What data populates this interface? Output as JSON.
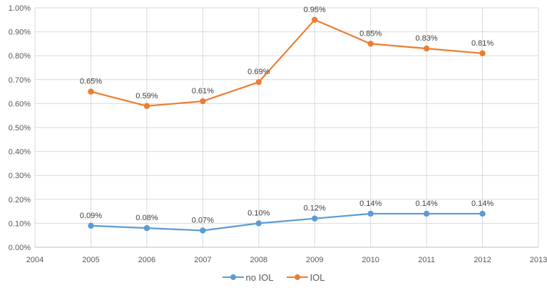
{
  "chart_data": {
    "type": "line",
    "x": [
      2005,
      2006,
      2007,
      2008,
      2009,
      2010,
      2011,
      2012
    ],
    "series": [
      {
        "name": "no IOL",
        "color": "#5B9BD5",
        "values": [
          0.09,
          0.08,
          0.07,
          0.1,
          0.12,
          0.14,
          0.14,
          0.14
        ],
        "labels": [
          "0.09%",
          "0.08%",
          "0.07%",
          "0.10%",
          "0.12%",
          "0.14%",
          "0.14%",
          "0.14%"
        ]
      },
      {
        "name": "IOL",
        "color": "#ED7D31",
        "values": [
          0.65,
          0.59,
          0.61,
          0.69,
          0.95,
          0.85,
          0.83,
          0.81
        ],
        "labels": [
          "0.65%",
          "0.59%",
          "0.61%",
          "0.69%",
          "0.95%",
          "0.85%",
          "0.83%",
          "0.81%"
        ]
      }
    ],
    "title": "",
    "xlabel": "",
    "ylabel": "",
    "xlim": [
      2004,
      2013
    ],
    "ylim": [
      0,
      1.0
    ],
    "x_tick_values": [
      2004,
      2005,
      2006,
      2007,
      2008,
      2009,
      2010,
      2011,
      2012,
      2013
    ],
    "x_tick_labels": [
      "2004",
      "2005",
      "2006",
      "2007",
      "2008",
      "2009",
      "2010",
      "2011",
      "2012",
      "2013"
    ],
    "y_tick_values": [
      0,
      0.1,
      0.2,
      0.3,
      0.4,
      0.5,
      0.6,
      0.7,
      0.8,
      0.9,
      1.0
    ],
    "y_tick_labels": [
      "0.00%",
      "0.10%",
      "0.20%",
      "0.30%",
      "0.40%",
      "0.50%",
      "0.60%",
      "0.70%",
      "0.80%",
      "0.90%",
      "1.00%"
    ],
    "grid": true,
    "legend_position": "bottom",
    "colors": {
      "gridline": "#D9D9D9",
      "axis_line": "#BFBFBF",
      "tick_text": "#595959",
      "data_label_text": "#404040"
    }
  }
}
